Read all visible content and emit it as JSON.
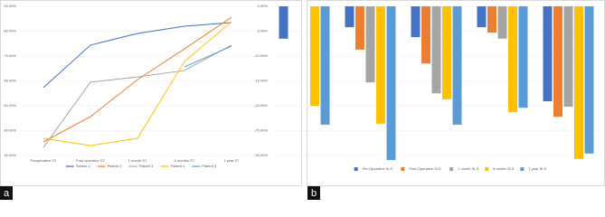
{
  "chart_data": [
    {
      "type": "line",
      "categories": [
        "Preoperative ST",
        "Post-operative ST",
        "1 month ST",
        "6 months ST",
        "1 year ST"
      ],
      "series": [
        {
          "name": "Patient 1",
          "color": "#4472c4",
          "values": [
            57.3,
            74.4,
            79.1,
            82,
            83.5
          ]
        },
        {
          "name": "Patient 2",
          "color": "#ed7d31",
          "values": [
            35.5,
            45.6,
            60.5,
            72.9,
            85.6
          ]
        },
        {
          "name": "Patient 3",
          "color": "#a5a5a5",
          "values": [
            33.3,
            59.5,
            61.6,
            64.2,
            74.4
          ]
        },
        {
          "name": "Patient 4",
          "color": "#ffc000",
          "values": [
            36.9,
            34,
            36.9,
            67.8,
            83.8
          ]
        },
        {
          "name": "Patient 5",
          "color": "#5b9bd5",
          "values": [
            null,
            null,
            null,
            65.6,
            74
          ]
        }
      ],
      "ylim": [
        30,
        90
      ],
      "yticks": [
        {
          "value": 30,
          "label": "30.00%"
        },
        {
          "value": 40,
          "label": "40.00%"
        },
        {
          "value": 50,
          "label": "50.00%"
        },
        {
          "value": 60,
          "label": "60.00%"
        },
        {
          "value": 70,
          "label": "70.00%"
        },
        {
          "value": 80,
          "label": "80.00%"
        },
        {
          "value": 90,
          "label": "90.00%"
        }
      ],
      "grid": true
    },
    {
      "type": "bar",
      "categories": [
        null,
        null,
        null,
        null,
        null
      ],
      "series": [
        {
          "name": "Per-Operative SLS",
          "color": "#4472c4",
          "values": [
            -6.5,
            -4.2,
            -6.2,
            -4.2,
            -19.1
          ]
        },
        {
          "name": "Post-Operative SLS",
          "color": "#ed7d31",
          "values": [
            null,
            -8.7,
            -11.5,
            -5.3,
            -22.2
          ]
        },
        {
          "name": "1 month SLS",
          "color": "#a5a5a5",
          "values": [
            null,
            -15.3,
            -17.5,
            -6.5,
            -20.2
          ]
        },
        {
          "name": "6 month SLS",
          "color": "#ffc000",
          "values": [
            -20,
            -23.6,
            -18.7,
            -21.3,
            -30.7
          ]
        },
        {
          "name": "1 year SLS",
          "color": "#5b9bd5",
          "values": [
            -23.8,
            -30.9,
            -23.8,
            -20.4,
            -29.6
          ]
        }
      ],
      "ylim": [
        -31,
        0
      ],
      "yticks": [
        {
          "value": 0,
          "label": "0.00%"
        },
        {
          "value": -5,
          "label": "-5.00%"
        },
        {
          "value": -10,
          "label": "-10.00%"
        },
        {
          "value": -15,
          "label": "-15.00%"
        },
        {
          "value": -20,
          "label": "-20.00%"
        },
        {
          "value": -25,
          "label": "-25.00%"
        },
        {
          "value": -30,
          "label": "-30.00%"
        }
      ],
      "grid": true
    }
  ],
  "panel_labels": [
    "a",
    "b"
  ]
}
